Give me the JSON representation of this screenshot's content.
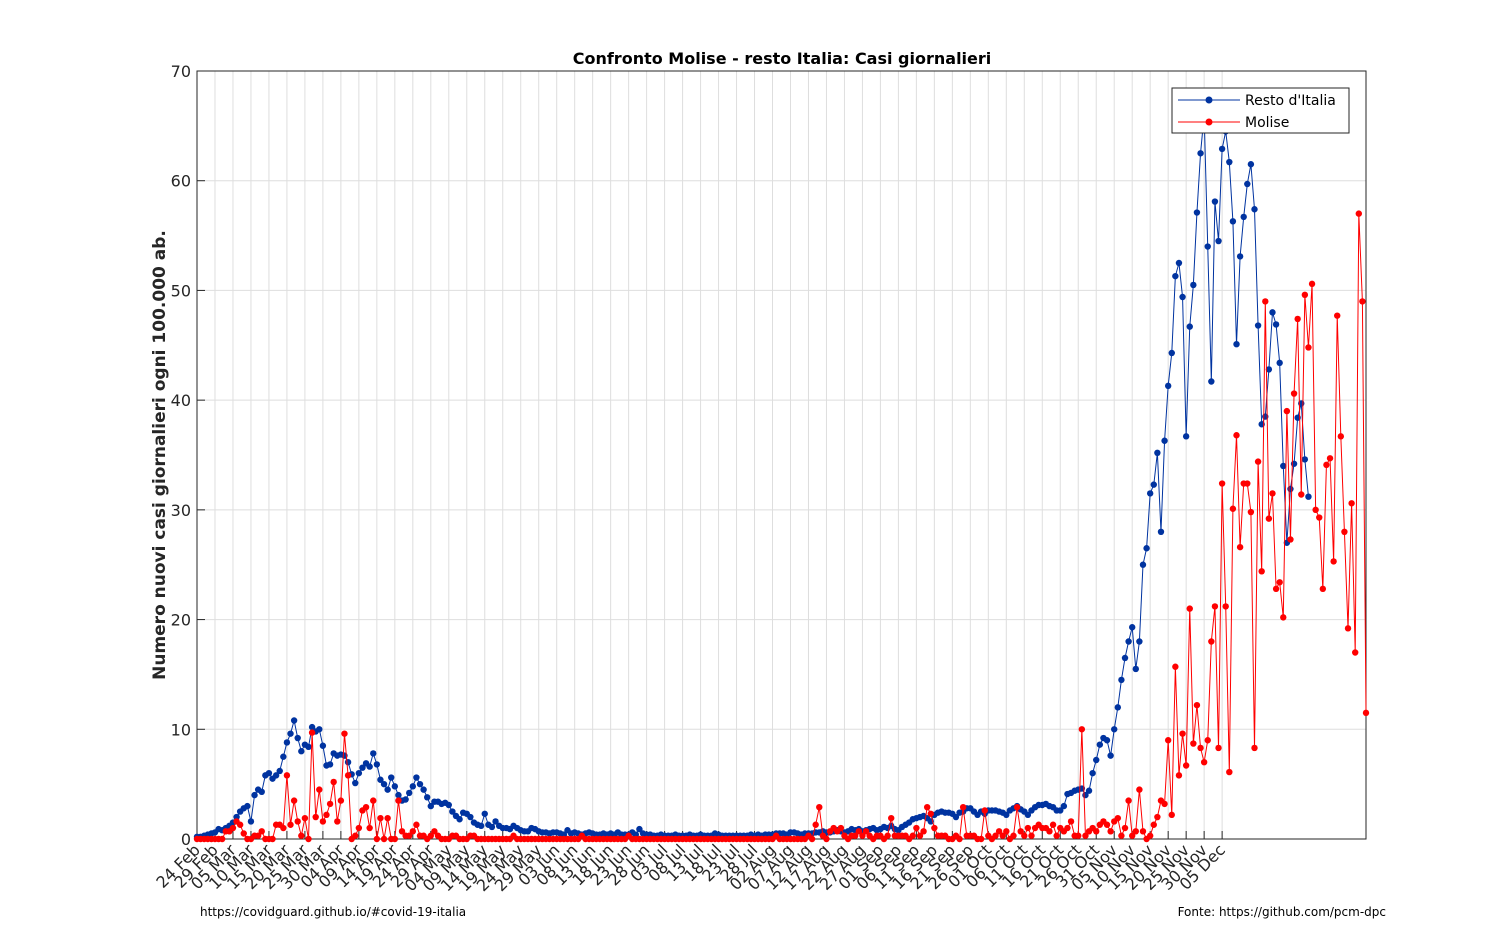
{
  "chart_data": {
    "type": "line",
    "title": "Confronto Molise - resto Italia: Casi giornalieri",
    "xlabel": "",
    "ylabel": "Numero nuovi casi giornalieri ogni 100.000 ab.",
    "ylim": [
      0,
      70
    ],
    "yticks": [
      0,
      10,
      20,
      30,
      40,
      50,
      60,
      70
    ],
    "grid": true,
    "legend_position": "top-right",
    "x_start": "2020-02-24",
    "x_tick_labels": [
      "24 Feb",
      "29 Feb",
      "05 Mar",
      "10 Mar",
      "15 Mar",
      "20 Mar",
      "25 Mar",
      "30 Mar",
      "04 Apr",
      "09 Apr",
      "14 Apr",
      "19 Apr",
      "24 Apr",
      "29 Apr",
      "04 May",
      "09 May",
      "14 May",
      "19 May",
      "24 May",
      "29 May",
      "03 Jun",
      "08 Jun",
      "13 Jun",
      "18 Jun",
      "23 Jun",
      "28 Jun",
      "03 Jul",
      "08 Jul",
      "13 Jul",
      "18 Jul",
      "23 Jul",
      "28 Jul",
      "02 Aug",
      "07 Aug",
      "12 Aug",
      "17 Aug",
      "22 Aug",
      "27 Aug",
      "01 Sep",
      "06 Sep",
      "11 Sep",
      "16 Sep",
      "21 Sep",
      "26 Sep",
      "01 Oct",
      "06 Oct",
      "11 Oct",
      "16 Oct",
      "21 Oct",
      "26 Oct",
      "31 Oct",
      "05 Nov",
      "10 Nov",
      "15 Nov",
      "20 Nov",
      "25 Nov",
      "30 Nov",
      "05 Dec"
    ],
    "series": [
      {
        "name": "Resto d'Italia",
        "color": "#0033a0",
        "values": [
          0.2,
          0.2,
          0.3,
          0.4,
          0.5,
          0.6,
          0.9,
          0.8,
          1.0,
          1.2,
          1.5,
          2.0,
          2.5,
          2.8,
          3.0,
          1.6,
          4.0,
          4.5,
          4.3,
          5.8,
          6.0,
          5.5,
          5.8,
          6.2,
          7.5,
          8.8,
          9.6,
          10.8,
          9.2,
          8.0,
          8.6,
          8.4,
          10.2,
          9.8,
          10.0,
          8.5,
          6.7,
          6.8,
          7.8,
          7.6,
          7.7,
          7.6,
          7.0,
          5.9,
          5.1,
          6.0,
          6.5,
          6.9,
          6.6,
          7.8,
          6.8,
          5.4,
          5.0,
          4.5,
          5.6,
          4.8,
          4.0,
          3.5,
          3.6,
          4.2,
          4.8,
          5.6,
          5.0,
          4.5,
          3.8,
          3.0,
          3.4,
          3.4,
          3.2,
          3.3,
          3.1,
          2.5,
          2.1,
          1.8,
          2.4,
          2.3,
          2.0,
          1.5,
          1.3,
          1.2,
          2.3,
          1.3,
          1.1,
          1.6,
          1.2,
          1.0,
          1.0,
          0.9,
          1.2,
          1.0,
          0.8,
          0.7,
          0.7,
          1.0,
          0.9,
          0.7,
          0.6,
          0.6,
          0.5,
          0.6,
          0.6,
          0.5,
          0.4,
          0.8,
          0.5,
          0.6,
          0.5,
          0.4,
          0.5,
          0.6,
          0.5,
          0.4,
          0.4,
          0.5,
          0.4,
          0.5,
          0.4,
          0.6,
          0.4,
          0.4,
          0.4,
          0.6,
          0.4,
          0.9,
          0.5,
          0.4,
          0.4,
          0.3,
          0.3,
          0.4,
          0.3,
          0.3,
          0.3,
          0.4,
          0.3,
          0.3,
          0.3,
          0.4,
          0.3,
          0.3,
          0.4,
          0.3,
          0.3,
          0.3,
          0.5,
          0.4,
          0.3,
          0.3,
          0.3,
          0.3,
          0.3,
          0.3,
          0.3,
          0.3,
          0.4,
          0.3,
          0.4,
          0.3,
          0.4,
          0.4,
          0.4,
          0.5,
          0.5,
          0.5,
          0.4,
          0.6,
          0.6,
          0.5,
          0.4,
          0.5,
          0.5,
          0.5,
          0.6,
          0.6,
          0.7,
          0.6,
          0.6,
          0.7,
          0.8,
          0.7,
          0.6,
          0.7,
          0.9,
          0.8,
          0.9,
          0.7,
          0.8,
          0.9,
          1.0,
          0.8,
          0.9,
          1.1,
          1.0,
          1.2,
          0.9,
          0.8,
          1.1,
          1.3,
          1.5,
          1.8,
          1.9,
          2.0,
          2.1,
          1.9,
          1.6,
          2.2,
          2.4,
          2.5,
          2.4,
          2.4,
          2.3,
          2.0,
          2.4,
          2.5,
          2.8,
          2.8,
          2.5,
          2.2,
          2.5,
          2.3,
          2.6,
          2.6,
          2.6,
          2.5,
          2.4,
          2.2,
          2.6,
          2.8,
          3.0,
          2.7,
          2.5,
          2.2,
          2.6,
          2.9,
          3.1,
          3.1,
          3.2,
          3.0,
          2.9,
          2.6,
          2.6,
          3.0,
          4.1,
          4.2,
          4.4,
          4.5,
          4.6,
          4.0,
          4.4,
          6.0,
          7.2,
          8.6,
          9.2,
          9.0,
          7.6,
          10.0,
          12.0,
          14.5,
          16.5,
          18.0,
          19.3,
          15.5,
          18.0,
          25.0,
          26.5,
          31.5,
          32.3,
          35.2,
          28.0,
          36.3,
          41.3,
          44.3,
          51.3,
          52.5,
          49.4,
          36.7,
          46.7,
          50.5,
          57.1,
          62.5,
          66.0,
          54.0,
          41.7,
          58.1,
          54.5,
          62.9,
          64.5,
          61.7,
          56.3,
          45.1,
          53.1,
          56.7,
          59.7,
          61.5,
          57.4,
          46.8,
          37.8,
          38.5,
          42.8,
          48.0,
          46.9,
          43.4,
          34.0,
          27.0,
          31.9,
          34.2,
          38.4,
          39.7,
          34.6,
          31.2
        ]
      },
      {
        "name": "Molise",
        "color": "#ff0000",
        "values": [
          0,
          0,
          0,
          0,
          0,
          0,
          0,
          0,
          0.7,
          0.7,
          1.0,
          1.6,
          1.3,
          0.5,
          0,
          0,
          0.3,
          0.3,
          0.7,
          0,
          0,
          0,
          1.3,
          1.3,
          1.0,
          5.8,
          1.3,
          3.5,
          1.6,
          0.3,
          1.9,
          0,
          9.7,
          2.0,
          4.5,
          1.6,
          2.2,
          3.2,
          5.2,
          1.6,
          3.5,
          9.6,
          5.8,
          0,
          0.3,
          1.0,
          2.6,
          2.9,
          1.0,
          3.5,
          0,
          1.9,
          0,
          1.9,
          0,
          0,
          3.5,
          0.7,
          0.3,
          0.3,
          0.7,
          1.3,
          0.3,
          0.3,
          0,
          0.3,
          0.7,
          0.3,
          0,
          0,
          0,
          0.3,
          0.3,
          0,
          0,
          0,
          0.3,
          0.3,
          0,
          0,
          0,
          0,
          0,
          0,
          0,
          0,
          0,
          0,
          0.3,
          0,
          0,
          0,
          0,
          0,
          0,
          0,
          0,
          0,
          0,
          0,
          0,
          0,
          0,
          0,
          0,
          0,
          0,
          0.3,
          0,
          0,
          0,
          0,
          0,
          0,
          0,
          0,
          0,
          0,
          0,
          0,
          0.3,
          0,
          0,
          0,
          0,
          0,
          0,
          0,
          0,
          0,
          0,
          0,
          0,
          0,
          0,
          0,
          0,
          0,
          0,
          0,
          0,
          0,
          0,
          0,
          0,
          0,
          0,
          0,
          0,
          0,
          0,
          0,
          0,
          0,
          0,
          0,
          0,
          0,
          0,
          0,
          0,
          0.3,
          0,
          0,
          0,
          0,
          0,
          0,
          0,
          0,
          0.3,
          0,
          1.3,
          2.9,
          0.3,
          0,
          0.7,
          1.0,
          0.7,
          1.0,
          0.3,
          0,
          0.3,
          0.3,
          0.7,
          0.3,
          0.7,
          0.3,
          0,
          0.3,
          0.3,
          0,
          0.3,
          1.9,
          0.3,
          0.3,
          0.3,
          0.3,
          0,
          0.3,
          1.0,
          0.3,
          0.7,
          2.9,
          2.3,
          1.0,
          0.3,
          0.3,
          0.3,
          0,
          0,
          0.3,
          0,
          2.9,
          0.3,
          0.3,
          0.3,
          0,
          0,
          2.6,
          0.3,
          0,
          0.3,
          0.7,
          0.3,
          0.7,
          0,
          0.3,
          2.9,
          0.7,
          0.3,
          1.0,
          0.3,
          1.0,
          1.3,
          1.0,
          1.0,
          0.7,
          1.3,
          0.3,
          1.0,
          0.7,
          1.0,
          1.6,
          0.3,
          0.3,
          10.0,
          0.3,
          0.7,
          1.0,
          0.7,
          1.3,
          1.6,
          1.3,
          0.7,
          1.6,
          1.9,
          0.3,
          1.0,
          3.5,
          0.3,
          0.7,
          4.5,
          0.7,
          0,
          0.3,
          1.3,
          2.0,
          3.5,
          3.2,
          9.0,
          2.2,
          15.7,
          5.8,
          9.6,
          6.7,
          21.0,
          8.7,
          12.2,
          8.3,
          7.0,
          9.0,
          18.0,
          21.2,
          8.3,
          32.4,
          21.2,
          6.1,
          30.1,
          36.8,
          26.6,
          32.4,
          32.4,
          29.8,
          8.3,
          34.4,
          24.4,
          49.0,
          29.2,
          31.5,
          22.8,
          23.4,
          20.2,
          39.0,
          27.3,
          40.6,
          47.4,
          31.4,
          49.6,
          44.8,
          50.6,
          30.0,
          29.3,
          22.8,
          34.1,
          34.7,
          25.3,
          47.7,
          36.7,
          28.0,
          19.2,
          30.6,
          17.0,
          57.0,
          49.0,
          11.5
        ]
      }
    ]
  },
  "footer": {
    "left": "https://covidguard.github.io/#covid-19-italia",
    "right": "Fonte: https://github.com/pcm-dpc"
  }
}
